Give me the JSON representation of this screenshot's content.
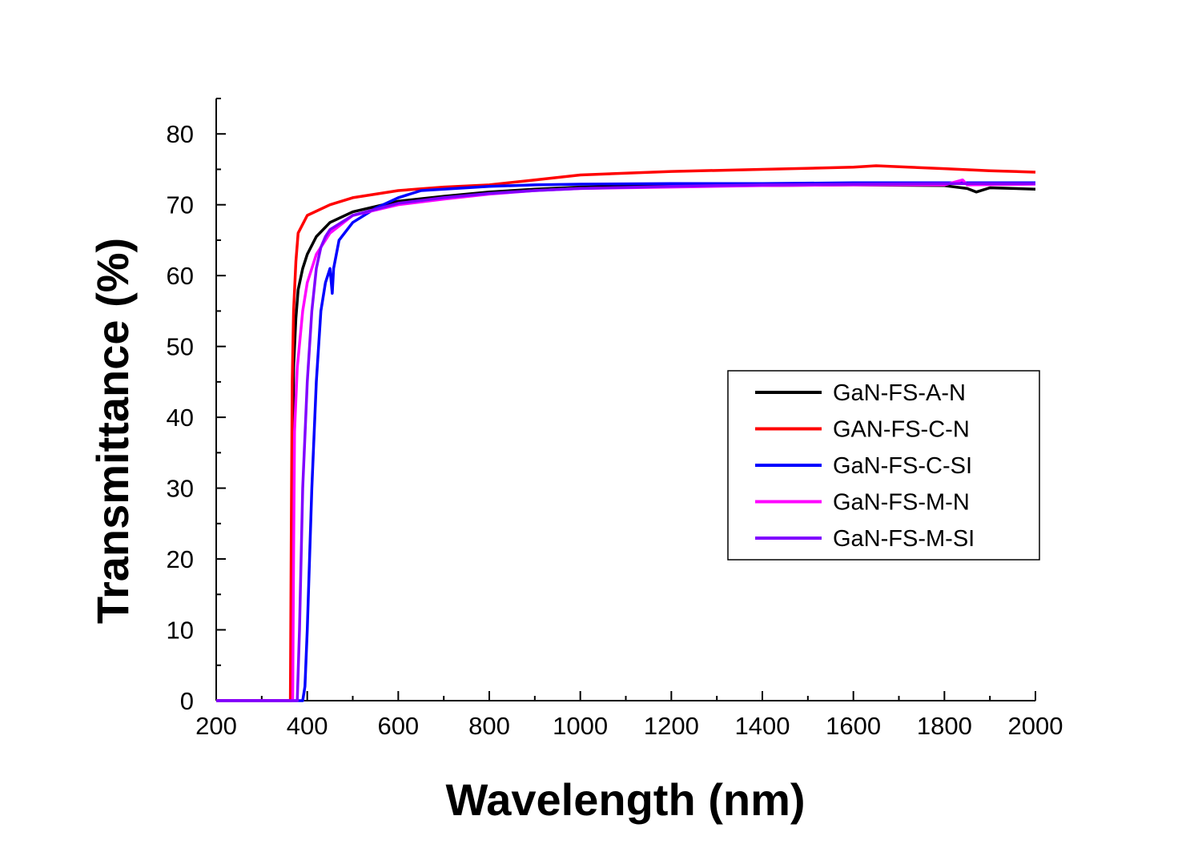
{
  "chart_data": {
    "type": "line",
    "title": "",
    "xlabel": "Wavelength (nm)",
    "ylabel": "Transmittance (%)",
    "xlim": [
      200,
      2000
    ],
    "ylim": [
      0,
      85
    ],
    "x_ticks": [
      "200",
      "400",
      "600",
      "800",
      "1000",
      "1200",
      "1400",
      "1600",
      "1800",
      "2000"
    ],
    "y_ticks": [
      "0",
      "10",
      "20",
      "30",
      "40",
      "50",
      "60",
      "70",
      "80"
    ],
    "grid": false,
    "legend_position": "right-middle",
    "series": [
      {
        "name": "GaN-FS-A-N",
        "color": "#000000",
        "points": [
          [
            200,
            0
          ],
          [
            366,
            0
          ],
          [
            368,
            20
          ],
          [
            370,
            47
          ],
          [
            375,
            54
          ],
          [
            380,
            58
          ],
          [
            390,
            61
          ],
          [
            400,
            63
          ],
          [
            420,
            65.5
          ],
          [
            450,
            67.5
          ],
          [
            500,
            69
          ],
          [
            600,
            70.5
          ],
          [
            700,
            71.2
          ],
          [
            800,
            71.8
          ],
          [
            900,
            72.2
          ],
          [
            1000,
            72.5
          ],
          [
            1200,
            72.7
          ],
          [
            1400,
            72.7
          ],
          [
            1600,
            72.8
          ],
          [
            1800,
            72.7
          ],
          [
            1850,
            72.3
          ],
          [
            1870,
            71.8
          ],
          [
            1900,
            72.4
          ],
          [
            2000,
            72.2
          ]
        ]
      },
      {
        "name": "GAN-FS-C-N",
        "color": "#ff0000",
        "points": [
          [
            200,
            0
          ],
          [
            363,
            0
          ],
          [
            365,
            25
          ],
          [
            367,
            45
          ],
          [
            370,
            55
          ],
          [
            375,
            62
          ],
          [
            380,
            66
          ],
          [
            400,
            68.5
          ],
          [
            450,
            70
          ],
          [
            500,
            71
          ],
          [
            600,
            72
          ],
          [
            700,
            72.5
          ],
          [
            800,
            72.8
          ],
          [
            900,
            73.5
          ],
          [
            1000,
            74.2
          ],
          [
            1200,
            74.7
          ],
          [
            1400,
            75
          ],
          [
            1600,
            75.3
          ],
          [
            1650,
            75.5
          ],
          [
            1800,
            75.1
          ],
          [
            1900,
            74.8
          ],
          [
            2000,
            74.6
          ]
        ]
      },
      {
        "name": "GaN-FS-C-SI",
        "color": "#0000ff",
        "points": [
          [
            200,
            0
          ],
          [
            390,
            0
          ],
          [
            395,
            2
          ],
          [
            400,
            10
          ],
          [
            410,
            30
          ],
          [
            420,
            45
          ],
          [
            430,
            55
          ],
          [
            440,
            59
          ],
          [
            450,
            61
          ],
          [
            455,
            57.5
          ],
          [
            458,
            61
          ],
          [
            470,
            65
          ],
          [
            500,
            67.5
          ],
          [
            550,
            69.5
          ],
          [
            600,
            71
          ],
          [
            650,
            72
          ],
          [
            700,
            72.2
          ],
          [
            800,
            72.6
          ],
          [
            900,
            72.8
          ],
          [
            1000,
            72.9
          ],
          [
            1200,
            73
          ],
          [
            1400,
            73
          ],
          [
            1600,
            73.1
          ],
          [
            1800,
            73.1
          ],
          [
            2000,
            73.1
          ]
        ]
      },
      {
        "name": "GaN-FS-M-N",
        "color": "#ff00ff",
        "points": [
          [
            200,
            0
          ],
          [
            368,
            0
          ],
          [
            370,
            20
          ],
          [
            372,
            38
          ],
          [
            378,
            47
          ],
          [
            390,
            55
          ],
          [
            400,
            59
          ],
          [
            420,
            63
          ],
          [
            450,
            66
          ],
          [
            500,
            68.5
          ],
          [
            600,
            70
          ],
          [
            700,
            70.8
          ],
          [
            800,
            71.5
          ],
          [
            900,
            72
          ],
          [
            1000,
            72.3
          ],
          [
            1200,
            72.5
          ],
          [
            1400,
            72.7
          ],
          [
            1600,
            72.8
          ],
          [
            1800,
            72.8
          ],
          [
            1840,
            73.5
          ],
          [
            1850,
            72.8
          ],
          [
            2000,
            72.9
          ]
        ]
      },
      {
        "name": "GaN-FS-M-SI",
        "color": "#8000ff",
        "points": [
          [
            200,
            0
          ],
          [
            378,
            0
          ],
          [
            383,
            10
          ],
          [
            390,
            30
          ],
          [
            400,
            45
          ],
          [
            410,
            55
          ],
          [
            420,
            61
          ],
          [
            430,
            64
          ],
          [
            440,
            65.5
          ],
          [
            450,
            66.5
          ],
          [
            500,
            68.5
          ],
          [
            600,
            70.2
          ],
          [
            700,
            71
          ],
          [
            800,
            71.6
          ],
          [
            900,
            72
          ],
          [
            1000,
            72.3
          ],
          [
            1200,
            72.6
          ],
          [
            1400,
            72.8
          ],
          [
            1600,
            72.9
          ],
          [
            1800,
            73
          ],
          [
            2000,
            73
          ]
        ]
      }
    ]
  }
}
